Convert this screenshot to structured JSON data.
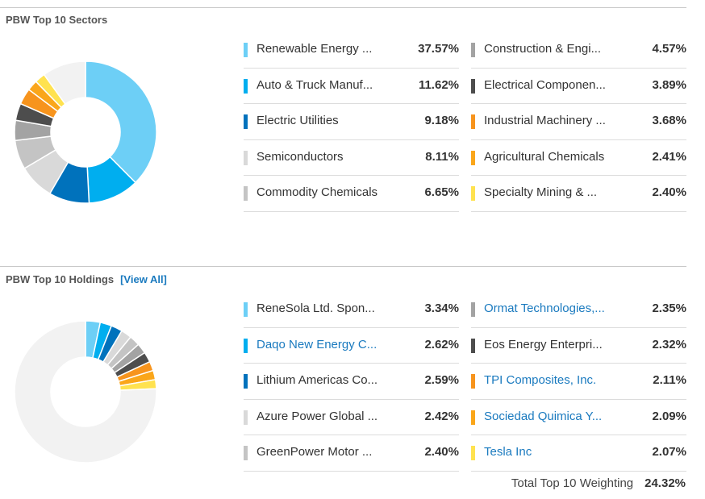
{
  "sectors": {
    "title": "PBW Top 10 Sectors",
    "items": [
      {
        "name": "Renewable Energy ...",
        "pct": "37.57%",
        "color": "#6dcff6"
      },
      {
        "name": "Auto & Truck Manuf...",
        "pct": "11.62%",
        "color": "#00aeef"
      },
      {
        "name": "Electric Utilities",
        "pct": "9.18%",
        "color": "#0072bc"
      },
      {
        "name": "Semiconductors",
        "pct": "8.11%",
        "color": "#d9d9d9"
      },
      {
        "name": "Commodity Chemicals",
        "pct": "6.65%",
        "color": "#c4c4c4"
      },
      {
        "name": "Construction & Engi...",
        "pct": "4.57%",
        "color": "#a3a3a3"
      },
      {
        "name": "Electrical Componen...",
        "pct": "3.89%",
        "color": "#4d4d4d"
      },
      {
        "name": "Industrial Machinery ...",
        "pct": "3.68%",
        "color": "#f7941d"
      },
      {
        "name": "Agricultural Chemicals",
        "pct": "2.41%",
        "color": "#faa61a"
      },
      {
        "name": "Specialty Mining & ...",
        "pct": "2.40%",
        "color": "#ffe24f"
      }
    ],
    "remainder_color": "#f2f2f2"
  },
  "holdings": {
    "title": "PBW Top 10 Holdings",
    "view_all": "[View All]",
    "items": [
      {
        "name": "ReneSola Ltd. Spon...",
        "pct": "3.34%",
        "color": "#6dcff6",
        "link": false
      },
      {
        "name": "Daqo New Energy C...",
        "pct": "2.62%",
        "color": "#00aeef",
        "link": true
      },
      {
        "name": "Lithium Americas Co...",
        "pct": "2.59%",
        "color": "#0072bc",
        "link": false
      },
      {
        "name": "Azure Power Global ...",
        "pct": "2.42%",
        "color": "#d9d9d9",
        "link": false
      },
      {
        "name": "GreenPower Motor ...",
        "pct": "2.40%",
        "color": "#c4c4c4",
        "link": false
      },
      {
        "name": "Ormat Technologies,...",
        "pct": "2.35%",
        "color": "#a3a3a3",
        "link": true
      },
      {
        "name": "Eos Energy Enterpri...",
        "pct": "2.32%",
        "color": "#4d4d4d",
        "link": false
      },
      {
        "name": "TPI Composites, Inc.",
        "pct": "2.11%",
        "color": "#f7941d",
        "link": true
      },
      {
        "name": "Sociedad Quimica Y...",
        "pct": "2.09%",
        "color": "#faa61a",
        "link": true
      },
      {
        "name": "Tesla Inc",
        "pct": "2.07%",
        "color": "#ffe24f",
        "link": true
      }
    ],
    "total_label": "Total Top 10 Weighting",
    "total_value": "24.32%",
    "remainder_color": "#f2f2f2"
  },
  "chart_data": [
    {
      "type": "pie",
      "title": "PBW Top 10 Sectors",
      "categories": [
        "Renewable Energy ...",
        "Auto & Truck Manuf...",
        "Electric Utilities",
        "Semiconductors",
        "Commodity Chemicals",
        "Construction & Engi...",
        "Electrical Componen...",
        "Industrial Machinery ...",
        "Agricultural Chemicals",
        "Specialty Mining & ..."
      ],
      "values": [
        37.57,
        11.62,
        9.18,
        8.11,
        6.65,
        4.57,
        3.89,
        3.68,
        2.41,
        2.4
      ]
    },
    {
      "type": "pie",
      "title": "PBW Top 10 Holdings",
      "categories": [
        "ReneSola Ltd. Spon...",
        "Daqo New Energy C...",
        "Lithium Americas Co...",
        "Azure Power Global ...",
        "GreenPower Motor ...",
        "Ormat Technologies,...",
        "Eos Energy Enterpri...",
        "TPI Composites, Inc.",
        "Sociedad Quimica Y...",
        "Tesla Inc"
      ],
      "values": [
        3.34,
        2.62,
        2.59,
        2.42,
        2.4,
        2.35,
        2.32,
        2.11,
        2.09,
        2.07
      ]
    }
  ]
}
